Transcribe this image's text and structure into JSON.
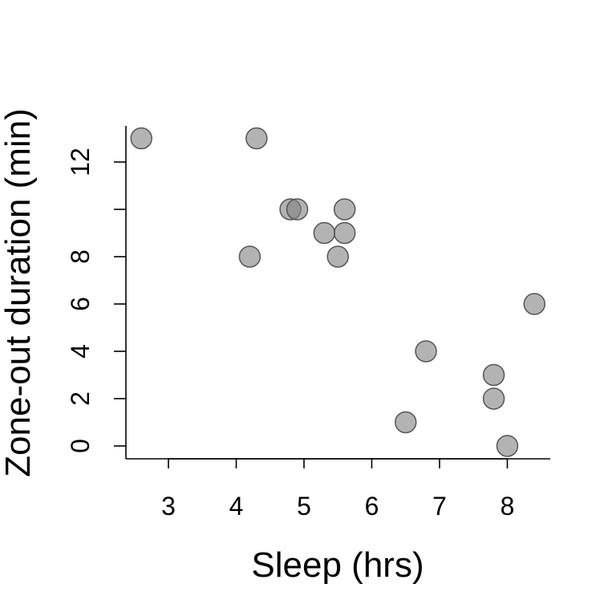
{
  "chart_data": {
    "type": "scatter",
    "xlabel": "Sleep (hrs)",
    "ylabel": "Zone-out duration (min)",
    "xlim": [
      2.4,
      8.6
    ],
    "ylim": [
      -0.5,
      13.5
    ],
    "x_ticks": [
      3,
      4,
      5,
      6,
      7,
      8
    ],
    "x_tick_labels": [
      "3",
      "4",
      "5",
      "6",
      "7",
      "8"
    ],
    "y_ticks": [
      0,
      2,
      4,
      6,
      8,
      10,
      12
    ],
    "y_tick_labels": [
      "0",
      "2",
      "4",
      "6",
      "8",
      "",
      "12"
    ],
    "grid": false,
    "colors": {
      "point_fill": "#808080",
      "point_stroke": "#555555"
    },
    "series": [
      {
        "points": [
          {
            "x": 2.6,
            "y": 13
          },
          {
            "x": 4.3,
            "y": 13
          },
          {
            "x": 4.8,
            "y": 10
          },
          {
            "x": 4.9,
            "y": 10
          },
          {
            "x": 5.6,
            "y": 10
          },
          {
            "x": 5.3,
            "y": 9
          },
          {
            "x": 5.6,
            "y": 9
          },
          {
            "x": 4.2,
            "y": 8
          },
          {
            "x": 5.5,
            "y": 8
          },
          {
            "x": 8.4,
            "y": 6
          },
          {
            "x": 6.8,
            "y": 4
          },
          {
            "x": 7.8,
            "y": 3
          },
          {
            "x": 7.8,
            "y": 2
          },
          {
            "x": 6.5,
            "y": 1
          },
          {
            "x": 8.0,
            "y": 0
          }
        ]
      }
    ]
  }
}
